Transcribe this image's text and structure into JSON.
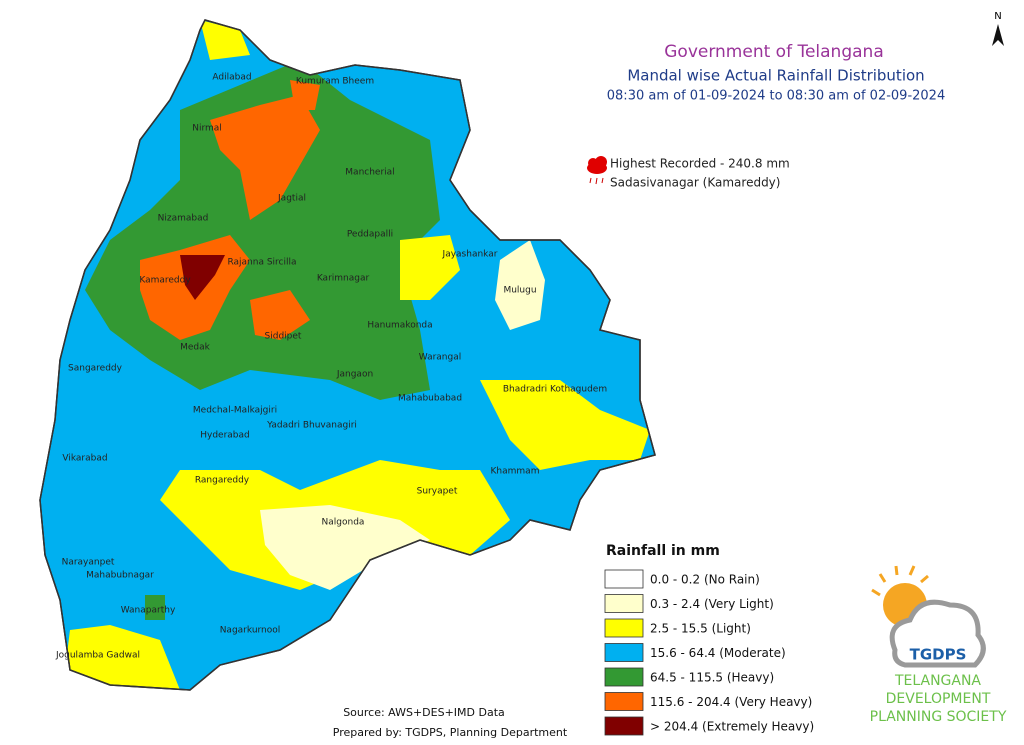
{
  "header": {
    "title": "Government of Telangana",
    "subtitle": "Mandal wise Actual Rainfall Distribution",
    "period": "08:30 am of 01-09-2024 to 08:30 am of 02-09-2024"
  },
  "north": "N",
  "highest": {
    "line1": "Highest Recorded - 240.8 mm",
    "line2": "Sadasivanagar (Kamareddy)"
  },
  "districts": [
    "Adilabad",
    "Kumuram Bheem",
    "Nirmal",
    "Mancherial",
    "Jagtial",
    "Nizamabad",
    "Peddapalli",
    "Jayashankar",
    "Rajanna Sircilla",
    "Karimnagar",
    "Kamareddy",
    "Mulugu",
    "Hanumakonda",
    "Siddipet",
    "Medak",
    "Warangal",
    "Jangaon",
    "Sangareddy",
    "Bhadradri Kothagudem",
    "Mahabubabad",
    "Medchal-Malkajgiri",
    "Yadadri Bhuvanagiri",
    "Hyderabad",
    "Vikarabad",
    "Khammam",
    "Rangareddy",
    "Suryapet",
    "Nalgonda",
    "Narayanpet",
    "Mahabubnagar",
    "Wanaparthy",
    "Nagarkurnool",
    "Jogulamba Gadwal"
  ],
  "legend": {
    "title": "Rainfall in mm",
    "items": [
      {
        "label": "0.0 - 0.2 (No Rain)",
        "color": "#ffffff"
      },
      {
        "label": "0.3 - 2.4 (Very Light)",
        "color": "#ffffcc"
      },
      {
        "label": "2.5 - 15.5 (Light)",
        "color": "#ffff00"
      },
      {
        "label": "15.6 - 64.4 (Moderate)",
        "color": "#00b0f0"
      },
      {
        "label": "64.5 - 115.5 (Heavy)",
        "color": "#339933"
      },
      {
        "label": "115.6 - 204.4 (Very Heavy)",
        "color": "#ff6600"
      },
      {
        "label": "> 204.4 (Extremely Heavy)",
        "color": "#800000"
      }
    ]
  },
  "source": "Source: AWS+DES+IMD Data",
  "prepared": "Prepared by: TGDPS, Planning Department",
  "logo": {
    "badge": "TGDPS",
    "name": [
      "TELANGANA",
      "DEVELOPMENT",
      "PLANNING SOCIETY"
    ]
  }
}
